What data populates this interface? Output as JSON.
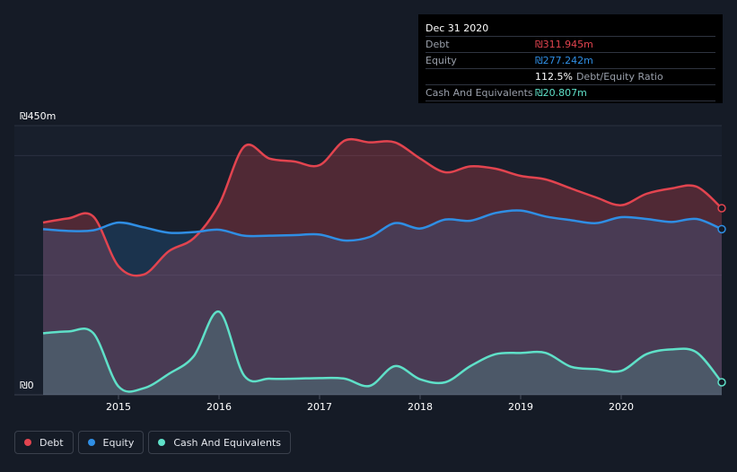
{
  "chart_data": {
    "type": "area",
    "title": "",
    "y_axis": {
      "max_label": "₪450m",
      "min_label": "₪0",
      "ylim": [
        0,
        450
      ],
      "unit": "₪m"
    },
    "x_ticks": [
      {
        "label": "2015",
        "x": 2015.0
      },
      {
        "label": "2016",
        "x": 2016.0
      },
      {
        "label": "2017",
        "x": 2017.0
      },
      {
        "label": "2018",
        "x": 2018.0
      },
      {
        "label": "2019",
        "x": 2019.0
      },
      {
        "label": "2020",
        "x": 2020.0
      }
    ],
    "xlim": [
      2014.25,
      2021.0
    ],
    "series": [
      {
        "name": "Debt",
        "color": "#e2444f",
        "points": [
          [
            2014.25,
            288
          ],
          [
            2014.5,
            295
          ],
          [
            2014.75,
            298
          ],
          [
            2015.0,
            215
          ],
          [
            2015.25,
            201
          ],
          [
            2015.5,
            240
          ],
          [
            2015.75,
            262
          ],
          [
            2016.0,
            318
          ],
          [
            2016.25,
            415
          ],
          [
            2016.5,
            395
          ],
          [
            2016.75,
            390
          ],
          [
            2017.0,
            384
          ],
          [
            2017.25,
            425
          ],
          [
            2017.5,
            422
          ],
          [
            2017.75,
            422
          ],
          [
            2018.0,
            395
          ],
          [
            2018.25,
            372
          ],
          [
            2018.5,
            382
          ],
          [
            2018.75,
            378
          ],
          [
            2019.0,
            366
          ],
          [
            2019.25,
            360
          ],
          [
            2019.5,
            345
          ],
          [
            2019.75,
            330
          ],
          [
            2020.0,
            317
          ],
          [
            2020.25,
            336
          ],
          [
            2020.5,
            345
          ],
          [
            2020.75,
            348
          ],
          [
            2021.0,
            312
          ]
        ]
      },
      {
        "name": "Equity",
        "color": "#2f8ee4",
        "points": [
          [
            2014.25,
            277
          ],
          [
            2014.5,
            274
          ],
          [
            2014.75,
            275
          ],
          [
            2015.0,
            288
          ],
          [
            2015.25,
            280
          ],
          [
            2015.5,
            271
          ],
          [
            2015.75,
            272
          ],
          [
            2016.0,
            276
          ],
          [
            2016.25,
            266
          ],
          [
            2016.5,
            266
          ],
          [
            2016.75,
            267
          ],
          [
            2017.0,
            268
          ],
          [
            2017.25,
            258
          ],
          [
            2017.5,
            264
          ],
          [
            2017.75,
            287
          ],
          [
            2018.0,
            278
          ],
          [
            2018.25,
            293
          ],
          [
            2018.5,
            291
          ],
          [
            2018.75,
            304
          ],
          [
            2019.0,
            308
          ],
          [
            2019.25,
            298
          ],
          [
            2019.5,
            292
          ],
          [
            2019.75,
            287
          ],
          [
            2020.0,
            297
          ],
          [
            2020.25,
            294
          ],
          [
            2020.5,
            289
          ],
          [
            2020.75,
            294
          ],
          [
            2021.0,
            277
          ]
        ]
      },
      {
        "name": "Cash And Equivalents",
        "color": "#5fe0c8",
        "points": [
          [
            2014.25,
            103
          ],
          [
            2014.5,
            106
          ],
          [
            2014.75,
            103
          ],
          [
            2015.0,
            14
          ],
          [
            2015.25,
            11
          ],
          [
            2015.5,
            35
          ],
          [
            2015.75,
            65
          ],
          [
            2016.0,
            139
          ],
          [
            2016.25,
            32
          ],
          [
            2016.5,
            27
          ],
          [
            2016.75,
            27
          ],
          [
            2017.0,
            28
          ],
          [
            2017.25,
            27
          ],
          [
            2017.5,
            15
          ],
          [
            2017.75,
            48
          ],
          [
            2018.0,
            26
          ],
          [
            2018.25,
            21
          ],
          [
            2018.5,
            48
          ],
          [
            2018.75,
            68
          ],
          [
            2019.0,
            70
          ],
          [
            2019.25,
            70
          ],
          [
            2019.5,
            47
          ],
          [
            2019.75,
            43
          ],
          [
            2020.0,
            40
          ],
          [
            2020.25,
            68
          ],
          [
            2020.5,
            76
          ],
          [
            2020.75,
            71
          ],
          [
            2021.0,
            21
          ]
        ]
      }
    ]
  },
  "tooltip": {
    "date": "Dec 31 2020",
    "debt_label": "Debt",
    "debt_value": "₪311.945m",
    "equity_label": "Equity",
    "equity_value": "₪277.242m",
    "ratio_value": "112.5%",
    "ratio_label": "Debt/Equity Ratio",
    "cash_label": "Cash And Equivalents",
    "cash_value": "₪20.807m"
  },
  "legend": {
    "items": [
      {
        "label": "Debt",
        "color": "#e2444f"
      },
      {
        "label": "Equity",
        "color": "#2f8ee4"
      },
      {
        "label": "Cash And Equivalents",
        "color": "#5fe0c8"
      }
    ]
  }
}
